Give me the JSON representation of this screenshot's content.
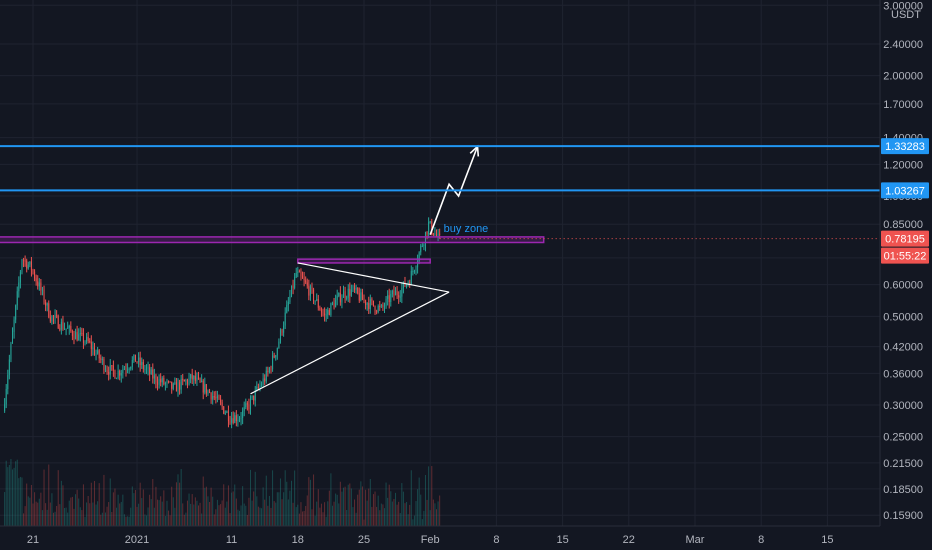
{
  "chart_data": {
    "type": "candlestick",
    "instrument_currency": "USDT",
    "y_scale": "log",
    "y_range": [
      0.145,
      3.0
    ],
    "x_range": [
      "2020-12-18",
      "2021-03-22"
    ],
    "x_ticks": [
      {
        "label": "21",
        "date": "2020-12-21"
      },
      {
        "label": "2021",
        "date": "2021-01-01"
      },
      {
        "label": "11",
        "date": "2021-01-11"
      },
      {
        "label": "18",
        "date": "2021-01-18"
      },
      {
        "label": "25",
        "date": "2021-01-25"
      },
      {
        "label": "Feb",
        "date": "2021-02-01"
      },
      {
        "label": "8",
        "date": "2021-02-08"
      },
      {
        "label": "15",
        "date": "2021-02-15"
      },
      {
        "label": "22",
        "date": "2021-02-22"
      },
      {
        "label": "Mar",
        "date": "2021-03-01"
      },
      {
        "label": "8",
        "date": "2021-03-08"
      },
      {
        "label": "15",
        "date": "2021-03-15"
      }
    ],
    "y_ticks": [
      {
        "label": "3.00000",
        "value": 3.0
      },
      {
        "label": "2.40000",
        "value": 2.4
      },
      {
        "label": "2.00000",
        "value": 2.0
      },
      {
        "label": "1.70000",
        "value": 1.7
      },
      {
        "label": "1.40000",
        "value": 1.4
      },
      {
        "label": "1.20000",
        "value": 1.2
      },
      {
        "label": "1.00000",
        "value": 1.0
      },
      {
        "label": "0.85000",
        "value": 0.85
      },
      {
        "label": "0.70000",
        "value": 0.7
      },
      {
        "label": "0.60000",
        "value": 0.6
      },
      {
        "label": "0.50000",
        "value": 0.5
      },
      {
        "label": "0.42000",
        "value": 0.42
      },
      {
        "label": "0.36000",
        "value": 0.36
      },
      {
        "label": "0.30000",
        "value": 0.3
      },
      {
        "label": "0.25000",
        "value": 0.25
      },
      {
        "label": "0.21500",
        "value": 0.215
      },
      {
        "label": "0.18500",
        "value": 0.185
      },
      {
        "label": "0.15900",
        "value": 0.159
      }
    ],
    "price_path": [
      {
        "date": "2020-12-18",
        "price": 0.29
      },
      {
        "date": "2020-12-19",
        "price": 0.45
      },
      {
        "date": "2020-12-20",
        "price": 0.7
      },
      {
        "date": "2020-12-21",
        "price": 0.66
      },
      {
        "date": "2020-12-22",
        "price": 0.58
      },
      {
        "date": "2020-12-23",
        "price": 0.5
      },
      {
        "date": "2020-12-25",
        "price": 0.46
      },
      {
        "date": "2020-12-27",
        "price": 0.43
      },
      {
        "date": "2020-12-29",
        "price": 0.37
      },
      {
        "date": "2020-12-30",
        "price": 0.36
      },
      {
        "date": "2021-01-01",
        "price": 0.39
      },
      {
        "date": "2021-01-03",
        "price": 0.35
      },
      {
        "date": "2021-01-05",
        "price": 0.33
      },
      {
        "date": "2021-01-07",
        "price": 0.35
      },
      {
        "date": "2021-01-09",
        "price": 0.32
      },
      {
        "date": "2021-01-10",
        "price": 0.3
      },
      {
        "date": "2021-01-11",
        "price": 0.28
      },
      {
        "date": "2021-01-12",
        "price": 0.28
      },
      {
        "date": "2021-01-13",
        "price": 0.3
      },
      {
        "date": "2021-01-14",
        "price": 0.33
      },
      {
        "date": "2021-01-15",
        "price": 0.36
      },
      {
        "date": "2021-01-16",
        "price": 0.42
      },
      {
        "date": "2021-01-17",
        "price": 0.52
      },
      {
        "date": "2021-01-18",
        "price": 0.64
      },
      {
        "date": "2021-01-19",
        "price": 0.6
      },
      {
        "date": "2021-01-20",
        "price": 0.55
      },
      {
        "date": "2021-01-21",
        "price": 0.5
      },
      {
        "date": "2021-01-22",
        "price": 0.54
      },
      {
        "date": "2021-01-23",
        "price": 0.57
      },
      {
        "date": "2021-01-24",
        "price": 0.58
      },
      {
        "date": "2021-01-25",
        "price": 0.55
      },
      {
        "date": "2021-01-27",
        "price": 0.52
      },
      {
        "date": "2021-01-28",
        "price": 0.56
      },
      {
        "date": "2021-01-29",
        "price": 0.58
      },
      {
        "date": "2021-01-30",
        "price": 0.62
      },
      {
        "date": "2021-01-31",
        "price": 0.72
      },
      {
        "date": "2021-02-01",
        "price": 0.85
      },
      {
        "date": "2021-02-02",
        "price": 0.782
      }
    ],
    "series_colors": {
      "up": "#26a69a",
      "down": "#ef5350"
    },
    "last_price": {
      "value": 0.78195,
      "label": "0.78195",
      "color": "#ef5350"
    },
    "countdown": {
      "label": "01:55:22",
      "color": "#ef5350"
    },
    "horizontal_levels": [
      {
        "value": 1.33283,
        "label": "1.33283",
        "color": "#2196f3"
      },
      {
        "value": 1.03267,
        "label": "1.03267",
        "color": "#2196f3"
      }
    ],
    "annotations": {
      "buy_zone": {
        "text": "buy zone",
        "y_low": 0.765,
        "y_high": 0.79,
        "x_start": "2020-12-17",
        "x_end": "2021-02-13",
        "color": "#9c27b0"
      },
      "triangle_top_zone": {
        "y_low": 0.68,
        "y_high": 0.695,
        "x_start": "2021-01-18",
        "x_end": "2021-02-01"
      },
      "triangle": {
        "color": "#ffffff",
        "upper": [
          {
            "date": "2021-01-18",
            "price": 0.68
          },
          {
            "date": "2021-02-03",
            "price": 0.575
          }
        ],
        "lower": [
          {
            "date": "2021-01-13",
            "price": 0.32
          },
          {
            "date": "2021-02-03",
            "price": 0.575
          }
        ]
      },
      "projection": {
        "color": "#ffffff",
        "points": [
          {
            "date": "2021-02-01",
            "price": 0.8
          },
          {
            "date": "2021-02-03",
            "price": 1.07
          },
          {
            "date": "2021-02-04",
            "price": 1.0
          },
          {
            "date": "2021-02-06",
            "price": 1.33
          }
        ]
      }
    },
    "volume_visible": true
  }
}
